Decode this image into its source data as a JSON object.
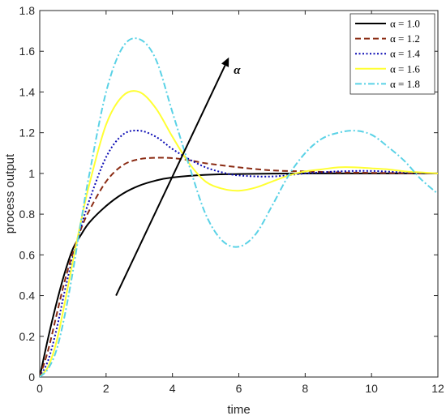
{
  "chart_data": {
    "type": "line",
    "title": "",
    "xlabel": "time",
    "ylabel": "process output",
    "xlim": [
      0,
      12
    ],
    "ylim": [
      0,
      1.8
    ],
    "xticks": [
      0,
      2,
      4,
      6,
      8,
      10,
      12
    ],
    "yticks": [
      0,
      0.2,
      0.4,
      0.6,
      0.8,
      1,
      1.2,
      1.4,
      1.6,
      1.8
    ],
    "xtick_labels": [
      "0",
      "2",
      "4",
      "6",
      "8",
      "10",
      "12"
    ],
    "ytick_labels": [
      "0",
      "0.2",
      "0.4",
      "0.6",
      "0.8",
      "1",
      "1.2",
      "1.4",
      "1.6",
      "1.8"
    ],
    "grid": false,
    "legend_position": "top-right",
    "series": [
      {
        "name": "α = 1.0",
        "color": "#000000",
        "dash": "solid",
        "x": [
          0,
          0.25,
          0.5,
          0.75,
          1,
          1.25,
          1.5,
          2,
          2.5,
          3,
          3.5,
          4,
          5,
          6,
          7,
          8,
          9,
          10,
          11,
          12
        ],
        "y": [
          0,
          0.19,
          0.36,
          0.51,
          0.63,
          0.7,
          0.76,
          0.84,
          0.9,
          0.94,
          0.965,
          0.98,
          0.993,
          0.997,
          0.999,
          1,
          1,
          1,
          1,
          1
        ]
      },
      {
        "name": "α = 1.2",
        "color": "#8b2c14",
        "dash": "dashed",
        "x": [
          0,
          0.25,
          0.5,
          0.75,
          1,
          1.25,
          1.5,
          2,
          2.5,
          3,
          3.5,
          4,
          4.5,
          5,
          6,
          7,
          8,
          9,
          10,
          11,
          12
        ],
        "y": [
          0,
          0.13,
          0.3,
          0.47,
          0.61,
          0.73,
          0.82,
          0.96,
          1.04,
          1.07,
          1.077,
          1.075,
          1.065,
          1.05,
          1.03,
          1.015,
          1.01,
          1.005,
          1.003,
          1.001,
          1
        ]
      },
      {
        "name": "α = 1.4",
        "color": "#0a0ab4",
        "dash": "dotted",
        "x": [
          0,
          0.25,
          0.5,
          0.75,
          1,
          1.25,
          1.5,
          2,
          2.5,
          3,
          3.5,
          4,
          4.5,
          5,
          5.5,
          6,
          7,
          8,
          9,
          10,
          11,
          12
        ],
        "y": [
          0,
          0.08,
          0.23,
          0.42,
          0.59,
          0.74,
          0.87,
          1.08,
          1.19,
          1.21,
          1.18,
          1.12,
          1.07,
          1.03,
          1.005,
          0.99,
          0.985,
          1.0,
          1.01,
          1.012,
          1.005,
          1
        ]
      },
      {
        "name": "α = 1.6",
        "color": "#ffff33",
        "dash": "solid",
        "x": [
          0,
          0.25,
          0.5,
          0.75,
          1,
          1.25,
          1.5,
          2,
          2.5,
          3,
          3.5,
          4,
          4.5,
          5,
          5.5,
          6,
          6.5,
          7,
          7.5,
          8,
          8.5,
          9,
          9.5,
          10,
          10.5,
          11,
          11.5,
          12
        ],
        "y": [
          0,
          0.05,
          0.17,
          0.36,
          0.57,
          0.77,
          0.95,
          1.24,
          1.38,
          1.4,
          1.32,
          1.18,
          1.05,
          0.96,
          0.925,
          0.915,
          0.93,
          0.96,
          0.99,
          1.01,
          1.02,
          1.03,
          1.03,
          1.025,
          1.02,
          1.01,
          1.005,
          1.0
        ]
      },
      {
        "name": "α = 1.8",
        "color": "#5ad2e6",
        "dash": "dashdot",
        "x": [
          0,
          0.25,
          0.5,
          0.75,
          1,
          1.25,
          1.5,
          2,
          2.5,
          3,
          3.5,
          4,
          4.5,
          5,
          5.5,
          6,
          6.5,
          7,
          7.5,
          8,
          8.5,
          9,
          9.5,
          10,
          10.5,
          11,
          11.5,
          12
        ],
        "y": [
          0,
          0.04,
          0.13,
          0.3,
          0.52,
          0.77,
          1.0,
          1.4,
          1.62,
          1.66,
          1.56,
          1.3,
          1.04,
          0.8,
          0.67,
          0.64,
          0.7,
          0.84,
          0.99,
          1.1,
          1.17,
          1.2,
          1.21,
          1.19,
          1.13,
          1.06,
          0.97,
          0.9
        ]
      }
    ],
    "annotations": [
      {
        "text": "α",
        "type": "arrow",
        "from": [
          2.3,
          0.4
        ],
        "to": [
          5.7,
          1.57
        ]
      }
    ]
  }
}
